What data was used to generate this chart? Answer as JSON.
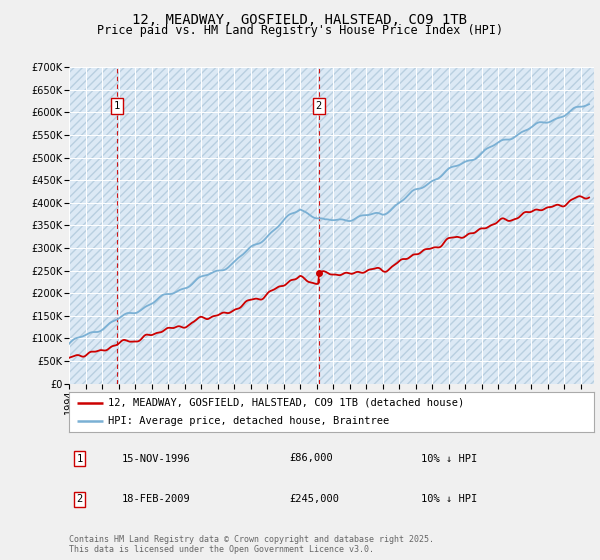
{
  "title": "12, MEADWAY, GOSFIELD, HALSTEAD, CO9 1TB",
  "subtitle": "Price paid vs. HM Land Registry's House Price Index (HPI)",
  "legend_label_red": "12, MEADWAY, GOSFIELD, HALSTEAD, CO9 1TB (detached house)",
  "legend_label_blue": "HPI: Average price, detached house, Braintree",
  "annotation1_date": "15-NOV-1996",
  "annotation1_price": "£86,000",
  "annotation1_hpi": "10% ↓ HPI",
  "annotation1_year": 1996.88,
  "annotation1_value": 86000,
  "annotation2_date": "18-FEB-2009",
  "annotation2_price": "£245,000",
  "annotation2_hpi": "10% ↓ HPI",
  "annotation2_year": 2009.13,
  "annotation2_value": 245000,
  "footer": "Contains HM Land Registry data © Crown copyright and database right 2025.\nThis data is licensed under the Open Government Licence v3.0.",
  "ylim_min": 0,
  "ylim_max": 700000,
  "xmin": 1994,
  "xmax": 2025.8,
  "background_color": "#dce9f5",
  "fig_bg_color": "#f0f0f0",
  "hatch_color": "#b8cfe0",
  "red_line_color": "#cc0000",
  "blue_line_color": "#7ab0d4",
  "grid_color": "#ffffff",
  "vline_color": "#cc0000",
  "box_color": "#cc0000",
  "title_fontsize": 10,
  "subtitle_fontsize": 8.5,
  "tick_fontsize": 7,
  "legend_fontsize": 7.5,
  "footer_fontsize": 6,
  "annotation_fontsize": 7.5
}
